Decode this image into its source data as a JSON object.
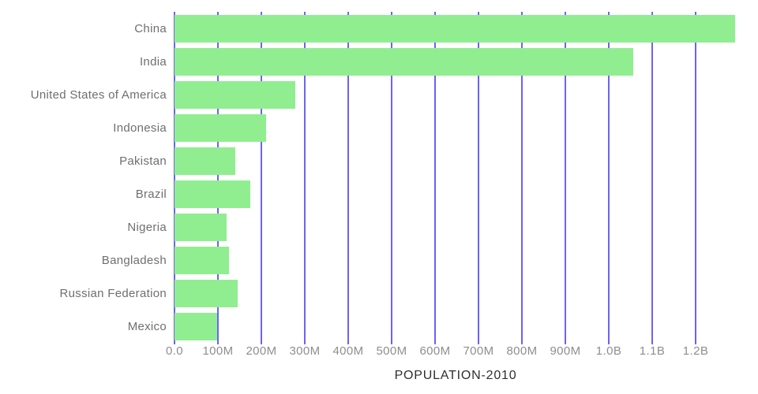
{
  "chart_data": {
    "type": "bar",
    "orientation": "horizontal",
    "title": "POPULATION-2010",
    "categories": [
      "China",
      "India",
      "United States of America",
      "Indonesia",
      "Pakistan",
      "Brazil",
      "Nigeria",
      "Bangladesh",
      "Russian Federation",
      "Mexico"
    ],
    "series": [
      {
        "name": "Population",
        "values_millions": [
          1291,
          1056,
          278,
          211,
          140,
          175,
          120,
          126,
          146,
          98
        ]
      }
    ],
    "x_axis": {
      "ticks": [
        {
          "label": "0.0",
          "value_millions": 0
        },
        {
          "label": "100M",
          "value_millions": 100
        },
        {
          "label": "200M",
          "value_millions": 200
        },
        {
          "label": "300M",
          "value_millions": 300
        },
        {
          "label": "400M",
          "value_millions": 400
        },
        {
          "label": "500M",
          "value_millions": 500
        },
        {
          "label": "600M",
          "value_millions": 600
        },
        {
          "label": "700M",
          "value_millions": 700
        },
        {
          "label": "800M",
          "value_millions": 800
        },
        {
          "label": "900M",
          "value_millions": 900
        },
        {
          "label": "1.0B",
          "value_millions": 1000
        },
        {
          "label": "1.1B",
          "value_millions": 1100
        },
        {
          "label": "1.2B",
          "value_millions": 1200
        }
      ],
      "xlim_millions": [
        0,
        1291
      ]
    },
    "grid": "vertical-only",
    "legend": "none",
    "colors": {
      "bar": "#90EE90",
      "grid": "#6C63F5",
      "category_label": "#6F6F6F",
      "tick_label": "#8E8E8E",
      "title": "#2E2E2E"
    }
  }
}
